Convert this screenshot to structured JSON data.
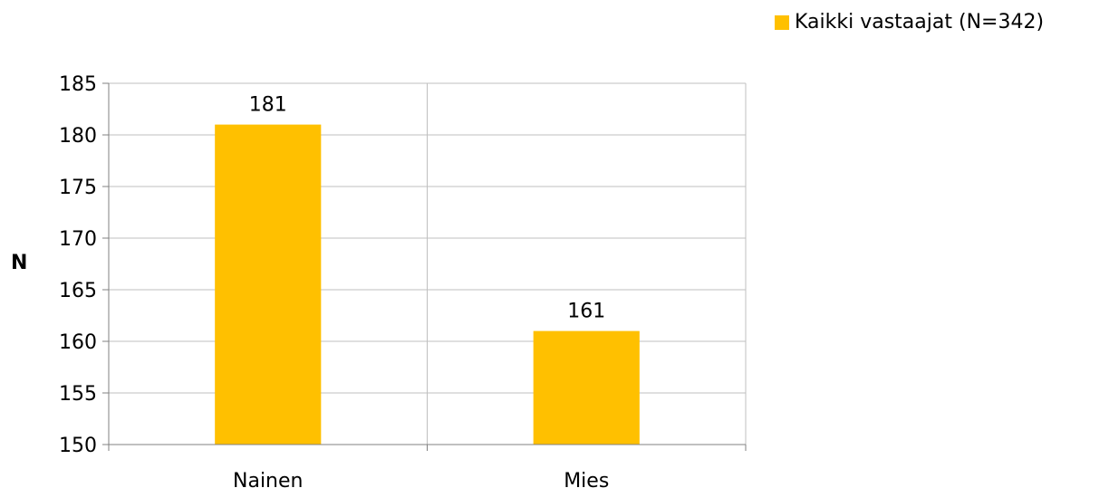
{
  "chart_data": {
    "type": "bar",
    "categories": [
      "Nainen",
      "Mies"
    ],
    "series": [
      {
        "name": "Kaikki vastaajat (N=342)",
        "values": [
          181,
          161
        ],
        "color": "#FFC000"
      }
    ],
    "title": "",
    "xlabel": "",
    "ylabel": "N",
    "ylim": [
      150,
      185
    ],
    "yticks": [
      150,
      155,
      160,
      165,
      170,
      175,
      180,
      185
    ],
    "grid": true,
    "legend_position": "top-right",
    "data_labels": [
      "181",
      "161"
    ]
  }
}
